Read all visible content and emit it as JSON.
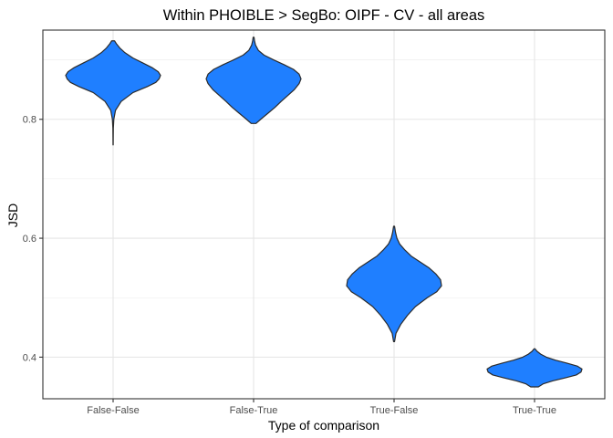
{
  "chart_data": {
    "type": "violin",
    "title": "Within PHOIBLE > SegBo: OIPF - CV - all areas",
    "xlabel": "Type of comparison",
    "ylabel": "JSD",
    "categories": [
      "False-False",
      "False-True",
      "True-False",
      "True-True"
    ],
    "ylim": [
      0.33,
      0.95
    ],
    "yticks": [
      0.4,
      0.6,
      0.8
    ],
    "ytick_labels": [
      "0.4",
      "0.6",
      "0.8"
    ],
    "grid": true,
    "fill_color": "#1f7fff",
    "outline_color": "#2b2b2b",
    "violins": [
      {
        "category": "False-False",
        "profile": [
          [
            0.757,
            0.002
          ],
          [
            0.77,
            0.003
          ],
          [
            0.785,
            0.005
          ],
          [
            0.8,
            0.015
          ],
          [
            0.815,
            0.05
          ],
          [
            0.83,
            0.17
          ],
          [
            0.845,
            0.42
          ],
          [
            0.855,
            0.72
          ],
          [
            0.862,
            0.9
          ],
          [
            0.868,
            0.97
          ],
          [
            0.874,
            1.0
          ],
          [
            0.88,
            0.95
          ],
          [
            0.887,
            0.82
          ],
          [
            0.895,
            0.62
          ],
          [
            0.903,
            0.42
          ],
          [
            0.912,
            0.25
          ],
          [
            0.92,
            0.14
          ],
          [
            0.927,
            0.07
          ],
          [
            0.932,
            0.03
          ]
        ]
      },
      {
        "category": "False-True",
        "profile": [
          [
            0.793,
            0.05
          ],
          [
            0.8,
            0.15
          ],
          [
            0.81,
            0.3
          ],
          [
            0.82,
            0.45
          ],
          [
            0.83,
            0.58
          ],
          [
            0.84,
            0.72
          ],
          [
            0.85,
            0.86
          ],
          [
            0.86,
            0.96
          ],
          [
            0.868,
            1.0
          ],
          [
            0.876,
            0.96
          ],
          [
            0.884,
            0.84
          ],
          [
            0.892,
            0.64
          ],
          [
            0.9,
            0.42
          ],
          [
            0.908,
            0.22
          ],
          [
            0.916,
            0.1
          ],
          [
            0.925,
            0.04
          ],
          [
            0.932,
            0.02
          ],
          [
            0.938,
            0.01
          ]
        ]
      },
      {
        "category": "True-False",
        "profile": [
          [
            0.426,
            0.01
          ],
          [
            0.44,
            0.04
          ],
          [
            0.455,
            0.14
          ],
          [
            0.47,
            0.28
          ],
          [
            0.485,
            0.45
          ],
          [
            0.5,
            0.7
          ],
          [
            0.51,
            0.9
          ],
          [
            0.52,
            1.0
          ],
          [
            0.53,
            0.98
          ],
          [
            0.54,
            0.88
          ],
          [
            0.55,
            0.74
          ],
          [
            0.56,
            0.55
          ],
          [
            0.57,
            0.36
          ],
          [
            0.58,
            0.23
          ],
          [
            0.59,
            0.12
          ],
          [
            0.6,
            0.06
          ],
          [
            0.61,
            0.03
          ],
          [
            0.62,
            0.01
          ]
        ]
      },
      {
        "category": "True-True",
        "profile": [
          [
            0.35,
            0.08
          ],
          [
            0.355,
            0.18
          ],
          [
            0.36,
            0.38
          ],
          [
            0.365,
            0.64
          ],
          [
            0.37,
            0.88
          ],
          [
            0.375,
            0.98
          ],
          [
            0.38,
            1.0
          ],
          [
            0.385,
            0.9
          ],
          [
            0.39,
            0.68
          ],
          [
            0.395,
            0.44
          ],
          [
            0.4,
            0.25
          ],
          [
            0.405,
            0.13
          ],
          [
            0.41,
            0.05
          ],
          [
            0.414,
            0.01
          ]
        ]
      }
    ]
  }
}
